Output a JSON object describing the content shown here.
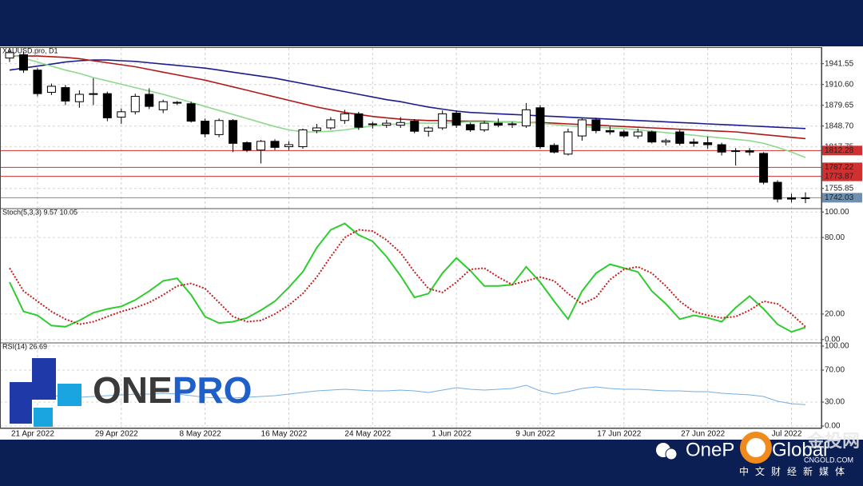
{
  "chart_data": [
    {
      "type": "candlestick",
      "title": "XAUUSD.pro, D1",
      "categories": [
        null,
        null,
        "21 Apr 2022",
        null,
        null,
        null,
        null,
        null,
        "29 Apr 2022",
        null,
        null,
        null,
        null,
        null,
        "8 May 2022",
        null,
        null,
        null,
        null,
        null,
        "16 May 2022",
        null,
        null,
        null,
        null,
        null,
        "24 May 2022",
        null,
        null,
        null,
        null,
        null,
        "1 Jun 2022",
        null,
        null,
        null,
        null,
        null,
        "9 Jun 2022",
        null,
        null,
        null,
        null,
        null,
        "17 Jun 2022",
        null,
        null,
        null,
        null,
        null,
        "27 Jun 2022",
        null,
        null,
        null,
        null,
        null,
        "Jul 2022",
        null
      ],
      "open": [
        1950,
        1955,
        1932,
        1899,
        1906,
        1885,
        1896,
        1897,
        1862,
        1870,
        1896,
        1873,
        1884,
        1882,
        1856,
        1836,
        1857,
        1824,
        1813,
        1826,
        1818,
        1818,
        1842,
        1846,
        1857,
        1867,
        1852,
        1850,
        1850,
        1856,
        1841,
        1846,
        1868,
        1851,
        1843,
        1853,
        1851,
        1849,
        1876,
        1820,
        1807,
        1834,
        1858,
        1842,
        1840,
        1834,
        1840,
        1825,
        1840,
        1825,
        1824,
        1821,
        1811,
        1812,
        1808,
        1765,
        1742,
        1742
      ],
      "high": [
        1962,
        1960,
        1935,
        1912,
        1910,
        1902,
        1920,
        1900,
        1875,
        1897,
        1905,
        1888,
        1886,
        1885,
        1860,
        1860,
        1859,
        1826,
        1828,
        1829,
        1826,
        1845,
        1852,
        1862,
        1873,
        1870,
        1855,
        1858,
        1862,
        1859,
        1848,
        1872,
        1872,
        1854,
        1856,
        1860,
        1855,
        1883,
        1880,
        1823,
        1845,
        1860,
        1861,
        1848,
        1843,
        1845,
        1842,
        1830,
        1843,
        1830,
        1833,
        1824,
        1816,
        1816,
        1810,
        1768,
        1748,
        1750
      ],
      "low": [
        1944,
        1928,
        1893,
        1895,
        1880,
        1876,
        1880,
        1856,
        1852,
        1866,
        1874,
        1868,
        1880,
        1854,
        1832,
        1832,
        1810,
        1810,
        1793,
        1813,
        1813,
        1815,
        1838,
        1843,
        1852,
        1843,
        1845,
        1846,
        1846,
        1838,
        1833,
        1843,
        1846,
        1840,
        1840,
        1847,
        1846,
        1846,
        1815,
        1808,
        1805,
        1827,
        1838,
        1836,
        1831,
        1830,
        1823,
        1820,
        1820,
        1818,
        1815,
        1805,
        1790,
        1805,
        1762,
        1735,
        1735,
        1734
      ],
      "close": [
        1958,
        1932,
        1897,
        1908,
        1886,
        1896,
        1897,
        1861,
        1870,
        1893,
        1878,
        1885,
        1883,
        1856,
        1837,
        1857,
        1823,
        1813,
        1826,
        1817,
        1821,
        1843,
        1846,
        1858,
        1867,
        1847,
        1851,
        1853,
        1854,
        1841,
        1846,
        1867,
        1850,
        1843,
        1853,
        1850,
        1852,
        1873,
        1818,
        1810,
        1840,
        1858,
        1842,
        1840,
        1834,
        1840,
        1825,
        1827,
        1823,
        1823,
        1821,
        1810,
        1812,
        1810,
        1765,
        1740,
        1740,
        1742
      ],
      "up_color": "#ffffff",
      "down_color": "#000000",
      "edge_color": "#000000",
      "overlays": [
        {
          "color": "#1c1c8c",
          "values": [
            1932,
            1935,
            1938,
            1941,
            1944,
            1946,
            1947,
            1947,
            1946,
            1945,
            1943,
            1941,
            1939,
            1937,
            1935,
            1932,
            1929,
            1926,
            1923,
            1920,
            1916,
            1912,
            1908,
            1904,
            1900,
            1896,
            1892,
            1888,
            1885,
            1881,
            1877,
            1874,
            1871,
            1869,
            1868,
            1867,
            1866,
            1865,
            1864,
            1863,
            1862,
            1861,
            1860,
            1859,
            1858,
            1857,
            1856,
            1855,
            1854,
            1853,
            1852,
            1851,
            1850,
            1849,
            1848,
            1847,
            1846,
            1845
          ]
        },
        {
          "color": "#b01818",
          "values": [
            1953,
            1953,
            1953,
            1952,
            1951,
            1949,
            1946,
            1943,
            1940,
            1937,
            1933,
            1929,
            1925,
            1921,
            1917,
            1912,
            1907,
            1902,
            1897,
            1892,
            1887,
            1882,
            1877,
            1873,
            1869,
            1866,
            1863,
            1861,
            1859,
            1858,
            1857,
            1857,
            1856,
            1856,
            1856,
            1855,
            1855,
            1854,
            1854,
            1853,
            1852,
            1851,
            1850,
            1849,
            1848,
            1847,
            1846,
            1845,
            1844,
            1843,
            1842,
            1841,
            1840,
            1838,
            1836,
            1834,
            1832,
            1830
          ]
        },
        {
          "color": "#8fd88f",
          "values": [
            1956,
            1950,
            1944,
            1938,
            1932,
            1927,
            1921,
            1916,
            1911,
            1906,
            1901,
            1896,
            1890,
            1884,
            1878,
            1872,
            1866,
            1860,
            1854,
            1848,
            1843,
            1840,
            1840,
            1841,
            1843,
            1846,
            1849,
            1851,
            1852,
            1853,
            1853,
            1853,
            1854,
            1855,
            1855,
            1855,
            1855,
            1854,
            1853,
            1851,
            1849,
            1848,
            1847,
            1846,
            1845,
            1843,
            1841,
            1839,
            1837,
            1835,
            1833,
            1831,
            1829,
            1827,
            1823,
            1817,
            1810,
            1802
          ]
        }
      ],
      "levels": [
        {
          "value": 1812.28,
          "color": "#d03030"
        },
        {
          "value": 1787.22,
          "color": "#d03030"
        },
        {
          "value": 1773.87,
          "color": "#d03030"
        },
        {
          "value": 1742.03,
          "color": "#6f8fb0"
        }
      ],
      "ylim": [
        1727,
        1965
      ],
      "yticks": [
        1941.55,
        {
          "value": 1910.6,
          "label": "1910.60"
        },
        1879.65,
        {
          "value": 1848.7,
          "label": "1848.70"
        },
        1817.75,
        1755.85
      ],
      "grid": true
    },
    {
      "type": "line",
      "title": "Stoch(5,3,3) 9.57 10.05",
      "series": [
        {
          "color": "#2ecc2e",
          "style": "solid",
          "values": [
            45,
            22,
            19,
            11,
            10,
            15,
            21,
            24,
            26,
            31,
            38,
            46,
            48,
            35,
            18,
            13,
            14,
            17,
            23,
            30,
            41,
            53,
            72,
            86,
            91,
            82,
            77,
            65,
            50,
            33,
            36,
            52,
            64,
            54,
            42,
            42,
            43,
            57,
            45,
            30,
            16,
            38,
            52,
            59,
            56,
            53,
            38,
            28,
            16,
            19,
            17,
            14,
            25,
            34,
            24,
            12,
            6,
            9.57
          ]
        },
        {
          "color": "#c41e1e",
          "style": "dotted",
          "values": [
            56,
            38,
            30,
            22,
            16,
            12,
            14,
            18,
            22,
            25,
            29,
            35,
            42,
            44,
            40,
            29,
            18,
            14,
            15,
            20,
            27,
            36,
            49,
            65,
            80,
            86,
            85,
            78,
            68,
            53,
            40,
            37,
            45,
            55,
            56,
            49,
            43,
            46,
            49,
            46,
            36,
            28,
            33,
            47,
            55,
            57,
            52,
            42,
            30,
            22,
            19,
            17,
            18,
            23,
            30,
            28,
            20,
            10.05
          ]
        }
      ],
      "ylim": [
        -2,
        102
      ],
      "yticks": [
        {
          "value": 100,
          "label": "100.00"
        },
        {
          "value": 80,
          "label": "80.00"
        },
        {
          "value": 20,
          "label": "20.00"
        },
        {
          "value": 0,
          "label": "0.00"
        }
      ],
      "grid": true
    },
    {
      "type": "line",
      "title": "RSI(14) 26.69",
      "series": [
        {
          "color": "#78aee0",
          "style": "thin",
          "values": [
            40,
            40,
            39,
            38,
            37,
            36,
            37,
            38,
            39,
            40,
            40,
            41,
            40,
            38,
            36,
            35,
            35,
            36,
            37,
            38,
            40,
            42,
            44,
            45,
            46,
            45,
            44,
            44,
            45,
            44,
            42,
            45,
            48,
            46,
            45,
            46,
            47,
            51,
            44,
            40,
            43,
            47,
            49,
            47,
            46,
            46,
            45,
            44,
            44,
            43,
            43,
            41,
            40,
            39,
            37,
            31,
            28,
            26.69
          ]
        }
      ],
      "ylim": [
        -2,
        103
      ],
      "yticks": [
        {
          "value": 100,
          "label": "100.00"
        },
        {
          "value": 70,
          "label": "70.00"
        },
        {
          "value": 30,
          "label": "30.00"
        },
        {
          "value": 0,
          "label": "0.00"
        }
      ],
      "grid": true
    }
  ],
  "branding": {
    "logo_left": "ONE",
    "logo_right": "PRO",
    "footer_left": "OneP",
    "footer_right": "Global",
    "badge": "金投网",
    "site": "CNGOLD.COM",
    "tagline": "中文财经新媒体"
  }
}
